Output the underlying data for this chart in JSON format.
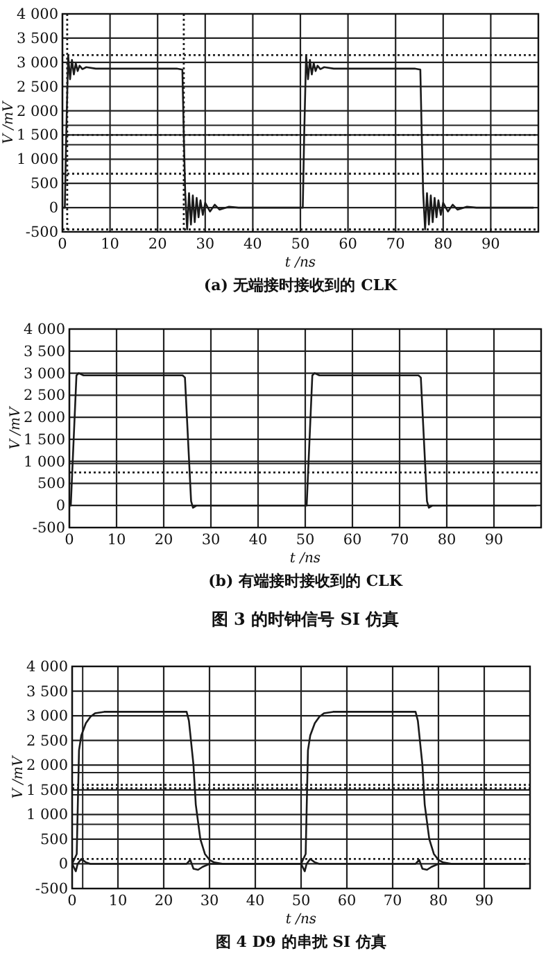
{
  "chart_data": [
    {
      "type": "line",
      "title": "(a) 无端接时接收到的 CLK",
      "xlabel": "t /ns",
      "ylabel": "V /mV",
      "xlim": [
        0,
        100
      ],
      "ylim": [
        -500,
        4000
      ],
      "xticks": [
        0,
        10,
        20,
        30,
        40,
        50,
        60,
        70,
        80,
        90
      ],
      "yticks": [
        {
          "value": 4000,
          "label": "4 000"
        },
        {
          "value": 3500,
          "label": "3 500"
        },
        {
          "value": 3000,
          "label": "3 000"
        },
        {
          "value": 2500,
          "label": "2 500"
        },
        {
          "value": 2000,
          "label": "2 000"
        },
        {
          "value": 1500,
          "label": "1 500"
        },
        {
          "value": 1000,
          "label": "1 000"
        },
        500,
        0,
        -500
      ],
      "grid": true,
      "series": [
        {
          "color": "#1a1a1a",
          "x": [
            0,
            0.5,
            0.8,
            1.2,
            1.6,
            2.0,
            2.4,
            2.8,
            3.2,
            3.6,
            4.2,
            5,
            7,
            10,
            24,
            25.2,
            25.5,
            25.8,
            26.2,
            26.6,
            27,
            27.4,
            27.8,
            28.2,
            28.6,
            29,
            29.5,
            30,
            31,
            32,
            33,
            35,
            37,
            40,
            50,
            50.5,
            50.8,
            51.2,
            51.6,
            52,
            52.4,
            52.8,
            53.2,
            53.6,
            54.2,
            55,
            57,
            60,
            74,
            75.2,
            75.5,
            75.8,
            76.2,
            76.6,
            77,
            77.4,
            77.8,
            78.2,
            78.6,
            79,
            79.5,
            80,
            81,
            82,
            83,
            85,
            87,
            90,
            99
          ],
          "values": [
            0,
            0,
            1500,
            3150,
            2650,
            3050,
            2750,
            2980,
            2820,
            2930,
            2860,
            2900,
            2870,
            2870,
            2870,
            2850,
            1500,
            300,
            -450,
            300,
            -350,
            250,
            -300,
            200,
            -200,
            150,
            -150,
            100,
            -80,
            60,
            -40,
            20,
            0,
            0,
            0,
            0,
            1500,
            3150,
            2650,
            3050,
            2750,
            2980,
            2820,
            2930,
            2860,
            2900,
            2870,
            2870,
            2870,
            2850,
            1500,
            300,
            -450,
            300,
            -350,
            250,
            -300,
            200,
            -200,
            150,
            -150,
            100,
            -80,
            60,
            -40,
            20,
            0,
            0,
            0
          ]
        }
      ],
      "ref_lines": [
        {
          "axis": "x",
          "value": 1,
          "line_style": "dotted"
        },
        {
          "axis": "x",
          "value": 25.5,
          "line_style": "dotted"
        },
        {
          "axis": "y",
          "value": 3150,
          "line_style": "dotted"
        },
        {
          "axis": "y",
          "value": 1700,
          "line_style": "solid"
        },
        {
          "axis": "y",
          "value": 1500,
          "line_style": "dotted"
        },
        {
          "axis": "y",
          "value": 1300,
          "line_style": "solid"
        },
        {
          "axis": "y",
          "value": 700,
          "line_style": "dotted"
        },
        {
          "axis": "y",
          "value": -450,
          "line_style": "dotted"
        }
      ]
    },
    {
      "type": "line",
      "title": "(b) 有端接时接收到的 CLK",
      "xlabel": "t /ns",
      "ylabel": "V /mV",
      "xlim": [
        0,
        100
      ],
      "ylim": [
        -500,
        4000
      ],
      "xticks": [
        0,
        10,
        20,
        30,
        40,
        50,
        60,
        70,
        80,
        90
      ],
      "yticks": [
        {
          "value": 4000,
          "label": "4 000"
        },
        {
          "value": 3500,
          "label": "3 500"
        },
        {
          "value": 3000,
          "label": "3 000"
        },
        {
          "value": 2500,
          "label": "2 500"
        },
        {
          "value": 2000,
          "label": "2 000"
        },
        {
          "value": 1500,
          "label": "1 500"
        },
        {
          "value": 1000,
          "label": "1 000"
        },
        500,
        0,
        -500
      ],
      "grid": true,
      "series": [
        {
          "color": "#1a1a1a",
          "x": [
            0,
            0.3,
            1.5,
            2,
            3,
            24,
            24.5,
            25.8,
            26.2,
            27,
            50,
            50.3,
            51.5,
            52,
            53,
            74,
            74.5,
            75.8,
            76.2,
            77,
            99
          ],
          "values": [
            0,
            0,
            2950,
            3000,
            2950,
            2950,
            2900,
            100,
            -50,
            0,
            0,
            0,
            2950,
            3000,
            2950,
            2950,
            2900,
            100,
            -50,
            0,
            0
          ]
        }
      ],
      "ref_lines": [
        {
          "axis": "y",
          "value": 950,
          "line_style": "solid"
        },
        {
          "axis": "y",
          "value": 750,
          "line_style": "dotted"
        }
      ],
      "annotations": [
        "图 3 的时钟信号 SI 仿真"
      ]
    },
    {
      "type": "line",
      "title": "图 4 D9 的串扰 SI 仿真",
      "xlabel": "t /ns",
      "ylabel": "V /mV",
      "xlim": [
        0,
        100
      ],
      "ylim": [
        -500,
        4000
      ],
      "xticks": [
        0,
        10,
        20,
        30,
        40,
        50,
        60,
        70,
        80,
        90
      ],
      "yticks": [
        {
          "value": 4000,
          "label": "4 000"
        },
        {
          "value": 3500,
          "label": "3 500"
        },
        {
          "value": 3000,
          "label": "3 000"
        },
        {
          "value": 2500,
          "label": "2 500"
        },
        {
          "value": 2000,
          "label": "2 000"
        },
        {
          "value": 1500,
          "label": "1 500"
        },
        {
          "value": 1000,
          "label": "1 000"
        },
        500,
        0,
        -500
      ],
      "grid": true,
      "series": [
        {
          "color": "#1a1a1a",
          "x": [
            0,
            1,
            1.5,
            2,
            3,
            4,
            5,
            7,
            25,
            25.5,
            26.5,
            27,
            28,
            29,
            30,
            31,
            33,
            50,
            51,
            51.5,
            52,
            53,
            54,
            55,
            57,
            75,
            75.5,
            76.5,
            77,
            78,
            79,
            80,
            81,
            83,
            99
          ],
          "values": [
            0,
            200,
            2300,
            2600,
            2850,
            2980,
            3050,
            3080,
            3080,
            2900,
            2000,
            1200,
            500,
            200,
            80,
            30,
            0,
            0,
            200,
            2300,
            2600,
            2850,
            2980,
            3050,
            3080,
            3080,
            2900,
            2000,
            1200,
            500,
            200,
            80,
            30,
            0,
            0
          ]
        },
        {
          "color": "#1a1a1a",
          "x": [
            0,
            0.8,
            1.2,
            2,
            3,
            4,
            25,
            25.8,
            26.5,
            27.5,
            28.5,
            30,
            50,
            50.8,
            51.2,
            52,
            53,
            54,
            75,
            75.8,
            76.5,
            77.5,
            78.5,
            80,
            99
          ],
          "values": [
            0,
            -150,
            0,
            100,
            30,
            0,
            0,
            80,
            -100,
            -120,
            -60,
            0,
            0,
            -150,
            0,
            100,
            30,
            0,
            0,
            80,
            -100,
            -120,
            -60,
            0,
            0
          ]
        }
      ],
      "ref_lines": [
        {
          "axis": "x",
          "value": 2.3,
          "line_style": "solid"
        },
        {
          "axis": "y",
          "value": 1850,
          "line_style": "solid"
        },
        {
          "axis": "y",
          "value": 1600,
          "line_style": "dotted"
        },
        {
          "axis": "y",
          "value": 1530,
          "line_style": "dotted"
        },
        {
          "axis": "y",
          "value": 1400,
          "line_style": "solid"
        },
        {
          "axis": "y",
          "value": 800,
          "line_style": "solid"
        },
        {
          "axis": "y",
          "value": 100,
          "line_style": "dotted"
        }
      ]
    }
  ]
}
